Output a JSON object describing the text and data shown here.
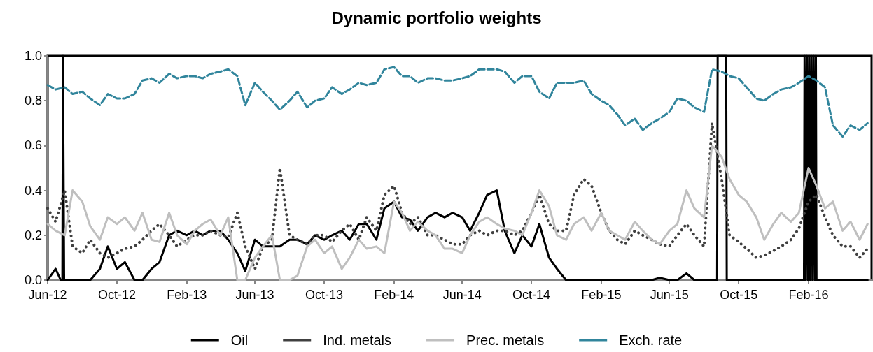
{
  "chart_data": {
    "type": "line",
    "title": "Dynamic portfolio weights",
    "x": [
      "2012-06-01",
      "2012-06-15",
      "2012-07-01",
      "2012-07-15",
      "2012-08-01",
      "2012-08-15",
      "2012-09-01",
      "2012-09-15",
      "2012-10-01",
      "2012-10-15",
      "2012-11-01",
      "2012-11-15",
      "2012-12-01",
      "2012-12-15",
      "2013-01-01",
      "2013-01-15",
      "2013-02-01",
      "2013-02-15",
      "2013-03-01",
      "2013-03-15",
      "2013-04-01",
      "2013-04-15",
      "2013-05-01",
      "2013-05-15",
      "2013-06-01",
      "2013-06-15",
      "2013-07-01",
      "2013-07-15",
      "2013-08-01",
      "2013-08-15",
      "2013-09-01",
      "2013-09-15",
      "2013-10-01",
      "2013-10-15",
      "2013-11-01",
      "2013-11-15",
      "2013-12-01",
      "2013-12-15",
      "2014-01-01",
      "2014-01-15",
      "2014-02-01",
      "2014-02-15",
      "2014-03-01",
      "2014-03-15",
      "2014-04-01",
      "2014-04-15",
      "2014-05-01",
      "2014-05-15",
      "2014-06-01",
      "2014-06-15",
      "2014-07-01",
      "2014-07-15",
      "2014-08-01",
      "2014-08-15",
      "2014-09-01",
      "2014-09-15",
      "2014-10-01",
      "2014-10-15",
      "2014-11-01",
      "2014-11-15",
      "2014-12-01",
      "2014-12-15",
      "2015-01-01",
      "2015-01-15",
      "2015-02-01",
      "2015-02-15",
      "2015-03-01",
      "2015-03-15",
      "2015-04-01",
      "2015-04-15",
      "2015-05-01",
      "2015-05-15",
      "2015-06-01",
      "2015-06-15",
      "2015-07-01",
      "2015-07-15",
      "2015-08-01",
      "2015-08-15",
      "2015-09-01",
      "2015-09-15",
      "2015-10-01",
      "2015-10-15",
      "2015-11-01",
      "2015-11-15",
      "2015-12-01",
      "2015-12-15",
      "2016-01-01",
      "2016-01-15",
      "2016-02-01",
      "2016-02-15",
      "2016-03-01",
      "2016-03-15",
      "2016-04-01",
      "2016-04-15",
      "2016-05-01",
      "2016-05-15"
    ],
    "series": [
      {
        "name": "Oil",
        "color": "#000000",
        "line_style": "solid",
        "x": [
          "2012-06-01",
          "2012-06-15",
          "2012-06-24",
          "2012-06-27",
          "2012-06-28",
          "2012-06-30",
          "2012-07-15",
          "2012-08-01",
          "2012-08-15",
          "2012-09-01",
          "2012-09-15",
          "2012-10-01",
          "2012-10-15",
          "2012-11-01",
          "2012-11-15",
          "2012-12-01",
          "2012-12-15",
          "2013-01-01",
          "2013-01-15",
          "2013-02-01",
          "2013-02-15",
          "2013-03-01",
          "2013-03-15",
          "2013-04-01",
          "2013-04-15",
          "2013-05-01",
          "2013-05-15",
          "2013-06-01",
          "2013-06-15",
          "2013-07-01",
          "2013-07-15",
          "2013-08-01",
          "2013-08-15",
          "2013-09-01",
          "2013-09-15",
          "2013-10-01",
          "2013-10-15",
          "2013-11-01",
          "2013-11-15",
          "2013-12-01",
          "2013-12-15",
          "2014-01-01",
          "2014-01-15",
          "2014-02-01",
          "2014-02-15",
          "2014-03-01",
          "2014-03-15",
          "2014-04-01",
          "2014-04-15",
          "2014-05-01",
          "2014-05-15",
          "2014-06-01",
          "2014-06-15",
          "2014-07-01",
          "2014-07-15",
          "2014-08-01",
          "2014-08-15",
          "2014-09-01",
          "2014-09-15",
          "2014-10-01",
          "2014-10-15",
          "2014-11-01",
          "2014-11-15",
          "2014-12-01",
          "2015-01-01",
          "2015-02-01",
          "2015-03-01",
          "2015-04-01",
          "2015-05-01",
          "2015-05-15",
          "2015-06-01",
          "2015-06-15",
          "2015-07-01",
          "2015-07-15",
          "2015-08-01",
          "2015-08-15",
          "2015-08-24",
          "2015-08-25",
          "2015-09-01",
          "2015-09-09",
          "2015-09-10",
          "2015-10-01",
          "2015-11-01",
          "2015-12-01",
          "2016-01-01",
          "2016-01-24",
          "2016-01-25",
          "2016-01-27",
          "2016-01-29",
          "2016-01-31",
          "2016-02-02",
          "2016-02-04",
          "2016-02-06",
          "2016-02-08",
          "2016-02-10",
          "2016-02-12",
          "2016-02-14",
          "2016-02-15",
          "2016-03-01",
          "2016-04-01",
          "2016-05-15"
        ],
        "values": [
          0,
          0.05,
          0,
          0,
          1.0,
          0,
          0,
          0,
          0,
          0.05,
          0.15,
          0.05,
          0.08,
          0,
          0,
          0.05,
          0.08,
          0.2,
          0.22,
          0.2,
          0.22,
          0.2,
          0.22,
          0.22,
          0.18,
          0.12,
          0.04,
          0.18,
          0.15,
          0.15,
          0.15,
          0.18,
          0.18,
          0.16,
          0.2,
          0.18,
          0.2,
          0.22,
          0.18,
          0.25,
          0.25,
          0.18,
          0.32,
          0.35,
          0.28,
          0.27,
          0.22,
          0.28,
          0.3,
          0.28,
          0.3,
          0.28,
          0.22,
          0.3,
          0.38,
          0.4,
          0.22,
          0.12,
          0.2,
          0.15,
          0.25,
          0.1,
          0.05,
          0,
          0,
          0,
          0,
          0,
          0,
          0.01,
          0,
          0,
          0.03,
          0,
          0,
          0,
          0,
          1.0,
          1.0,
          1.0,
          0,
          0,
          0,
          0,
          0,
          0,
          1.0,
          0,
          1.0,
          0,
          1.0,
          0,
          1.0,
          0,
          1.0,
          0,
          1.0,
          0,
          0,
          0,
          0
        ]
      },
      {
        "name": "Ind. metals",
        "color": "#404040",
        "line_style": "dotted",
        "values": [
          0.32,
          0.26,
          0.4,
          0.15,
          0.12,
          0.18,
          0.12,
          0.1,
          0.12,
          0.14,
          0.15,
          0.18,
          0.22,
          0.25,
          0.2,
          0.15,
          0.18,
          0.2,
          0.2,
          0.22,
          0.2,
          0.19,
          0.3,
          0.15,
          0.05,
          0.15,
          0.18,
          0.5,
          0.2,
          0.18,
          0.16,
          0.2,
          0.2,
          0.17,
          0.22,
          0.25,
          0.18,
          0.28,
          0.22,
          0.38,
          0.42,
          0.3,
          0.25,
          0.28,
          0.2,
          0.2,
          0.18,
          0.16,
          0.16,
          0.2,
          0.22,
          0.2,
          0.22,
          0.22,
          0.2,
          0.22,
          0.3,
          0.38,
          0.25,
          0.22,
          0.22,
          0.38,
          0.45,
          0.42,
          0.3,
          0.22,
          0.18,
          0.16,
          0.22,
          0.2,
          0.18,
          0.16,
          0.15,
          0.2,
          0.25,
          0.2,
          0.15,
          0.7,
          0.45,
          0.2,
          0.17,
          0.14,
          0.1,
          0.11,
          0.13,
          0.15,
          0.18,
          0.23,
          0.35,
          0.38,
          0.28,
          0.2,
          0.15,
          0.15,
          0.1,
          0.14
        ]
      },
      {
        "name": "Prec. metals",
        "color": "#bfbfbf",
        "line_style": "solid",
        "values": [
          0.25,
          0.22,
          0.2,
          0.4,
          0.35,
          0.24,
          0.18,
          0.28,
          0.25,
          0.28,
          0.22,
          0.3,
          0.18,
          0.17,
          0.3,
          0.2,
          0.16,
          0.22,
          0.25,
          0.27,
          0.2,
          0.28,
          0,
          0,
          0.1,
          0.15,
          0.2,
          0,
          0,
          0.02,
          0.15,
          0.18,
          0.12,
          0.15,
          0.05,
          0.1,
          0.18,
          0.14,
          0.15,
          0.12,
          0.35,
          0.3,
          0.22,
          0.26,
          0.22,
          0.2,
          0.14,
          0.14,
          0.12,
          0.2,
          0.26,
          0.28,
          0.25,
          0.23,
          0.22,
          0.2,
          0.3,
          0.4,
          0.33,
          0.2,
          0.18,
          0.25,
          0.28,
          0.22,
          0.3,
          0.22,
          0.2,
          0.18,
          0.26,
          0.22,
          0.18,
          0.16,
          0.22,
          0.25,
          0.4,
          0.32,
          0.28,
          0.6,
          0.55,
          0.45,
          0.38,
          0.35,
          0.28,
          0.18,
          0.25,
          0.3,
          0.26,
          0.3,
          0.5,
          0.42,
          0.32,
          0.35,
          0.22,
          0.26,
          0.18,
          0.25
        ]
      },
      {
        "name": "Exch. rate",
        "color": "#31859c",
        "line_style": "dashed",
        "values": [
          0.87,
          0.85,
          0.86,
          0.83,
          0.84,
          0.81,
          0.78,
          0.83,
          0.81,
          0.81,
          0.83,
          0.89,
          0.9,
          0.88,
          0.92,
          0.9,
          0.91,
          0.91,
          0.9,
          0.92,
          0.93,
          0.94,
          0.91,
          0.78,
          0.88,
          0.84,
          0.8,
          0.76,
          0.8,
          0.84,
          0.77,
          0.8,
          0.81,
          0.86,
          0.83,
          0.85,
          0.88,
          0.87,
          0.88,
          0.94,
          0.95,
          0.91,
          0.91,
          0.88,
          0.9,
          0.9,
          0.89,
          0.89,
          0.9,
          0.91,
          0.94,
          0.94,
          0.94,
          0.93,
          0.88,
          0.91,
          0.91,
          0.84,
          0.81,
          0.88,
          0.88,
          0.88,
          0.89,
          0.83,
          0.8,
          0.78,
          0.74,
          0.69,
          0.72,
          0.67,
          0.7,
          0.72,
          0.75,
          0.81,
          0.8,
          0.77,
          0.75,
          0.94,
          0.93,
          0.91,
          0.9,
          0.86,
          0.81,
          0.8,
          0.83,
          0.85,
          0.86,
          0.88,
          0.91,
          0.89,
          0.86,
          0.69,
          0.64,
          0.69,
          0.67,
          0.7
        ]
      }
    ],
    "xlim": [
      "2012-06-01",
      "2016-05-22"
    ],
    "xticks": [
      {
        "value": "2012-06-01",
        "label": "Jun-12"
      },
      {
        "value": "2012-10-01",
        "label": "Oct-12"
      },
      {
        "value": "2013-02-01",
        "label": "Feb-13"
      },
      {
        "value": "2013-06-01",
        "label": "Jun-13"
      },
      {
        "value": "2013-10-01",
        "label": "Oct-13"
      },
      {
        "value": "2014-02-01",
        "label": "Feb-14"
      },
      {
        "value": "2014-06-01",
        "label": "Jun-14"
      },
      {
        "value": "2014-10-01",
        "label": "Oct-14"
      },
      {
        "value": "2015-02-01",
        "label": "Feb-15"
      },
      {
        "value": "2015-06-01",
        "label": "Jun-15"
      },
      {
        "value": "2015-10-01",
        "label": "Oct-15"
      },
      {
        "value": "2016-02-01",
        "label": "Feb-16"
      }
    ],
    "ylim": [
      0,
      1
    ],
    "yticks": [
      {
        "value": 0,
        "label": "0.0"
      },
      {
        "value": 0.2,
        "label": "0.2"
      },
      {
        "value": 0.4,
        "label": "0.4"
      },
      {
        "value": 0.6,
        "label": "0.6"
      },
      {
        "value": 0.8,
        "label": "0.8"
      },
      {
        "value": 1,
        "label": "1.0"
      }
    ],
    "grid": false,
    "legend": "bottom",
    "marker": "none"
  }
}
